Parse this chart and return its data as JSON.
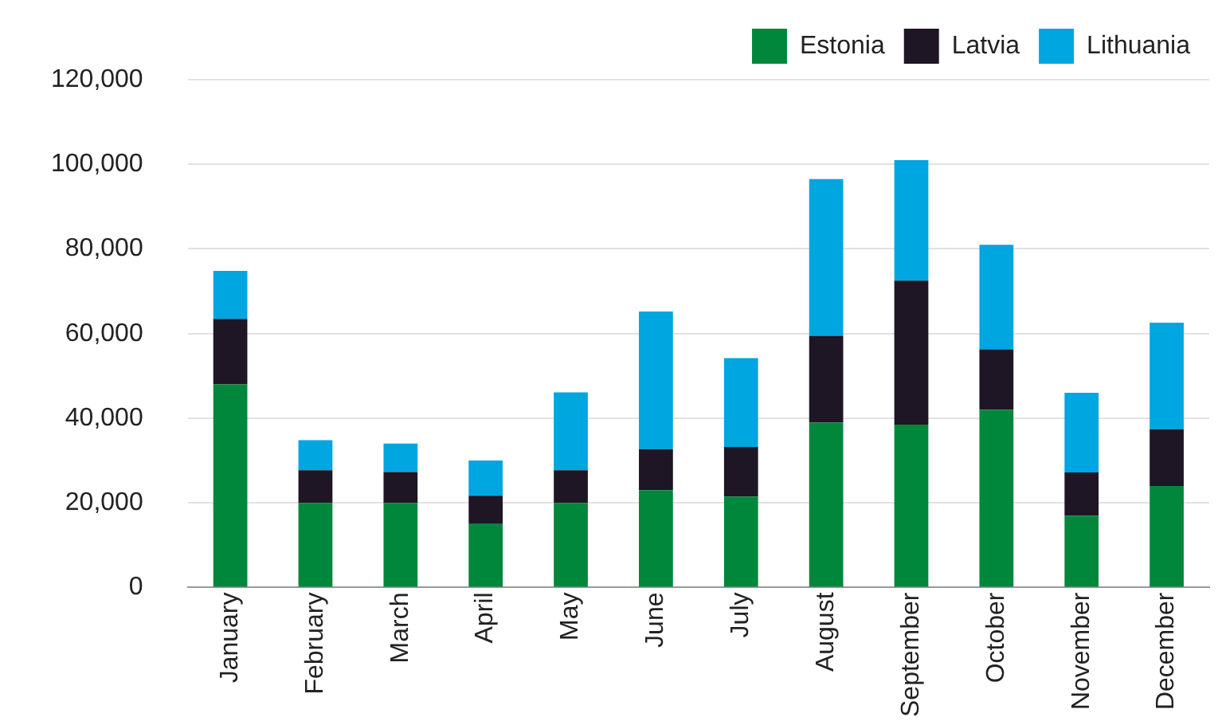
{
  "chart_data": {
    "type": "bar",
    "stacked": true,
    "categories": [
      "January",
      "February",
      "March",
      "April",
      "May",
      "June",
      "July",
      "August",
      "September",
      "October",
      "November",
      "December"
    ],
    "series": [
      {
        "name": "Estonia",
        "color": "#00873c",
        "values": [
          48000,
          20000,
          20000,
          15000,
          20000,
          23000,
          21500,
          39000,
          38500,
          42000,
          17000,
          24000
        ]
      },
      {
        "name": "Latvia",
        "color": "#1e1624",
        "values": [
          15500,
          7700,
          7300,
          6700,
          7700,
          9700,
          11700,
          20500,
          34000,
          14300,
          10200,
          13400
        ]
      },
      {
        "name": "Lithuania",
        "color": "#00a6e0",
        "values": [
          11300,
          7100,
          6700,
          8300,
          18400,
          32500,
          21000,
          37000,
          28500,
          24700,
          18800,
          25200
        ]
      }
    ],
    "ylim": [
      0,
      120000
    ],
    "yticks": [
      0,
      {
        "value": 20000,
        "label": "20,000"
      },
      {
        "value": 40000,
        "label": "40,000"
      },
      {
        "value": 60000,
        "label": "60,000"
      },
      {
        "value": 80000,
        "label": "80,000"
      },
      {
        "value": 100000,
        "label": "100,000"
      },
      {
        "value": 120000,
        "label": "120,000"
      }
    ],
    "grid": "y",
    "legend": "top right"
  }
}
